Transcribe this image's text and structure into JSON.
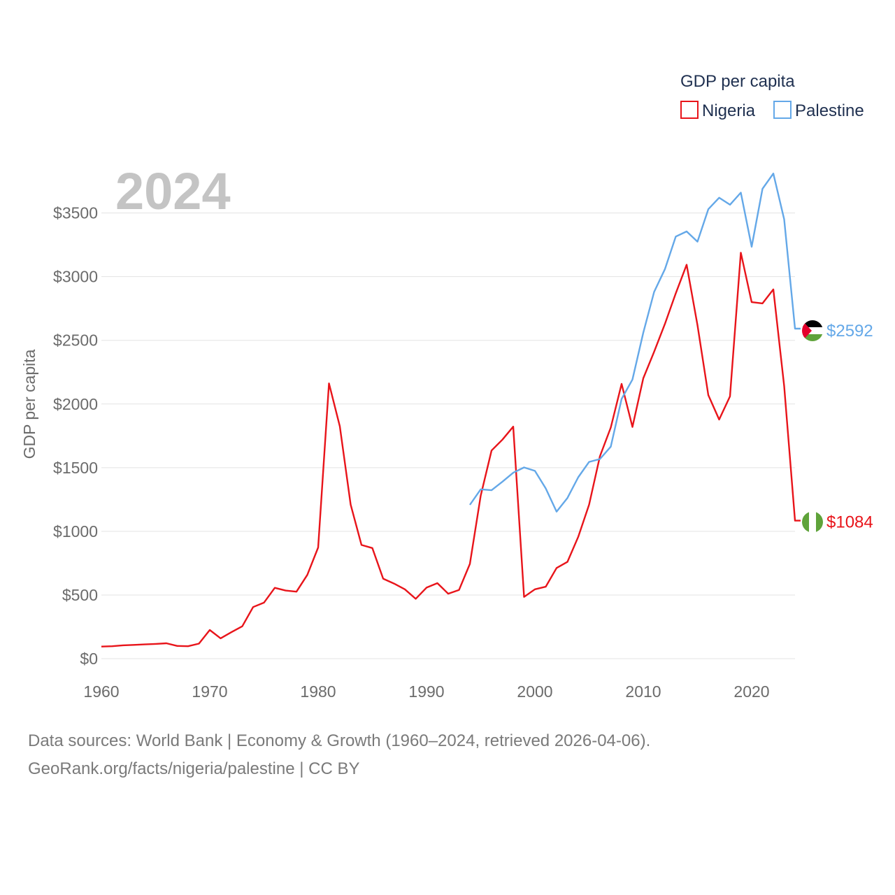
{
  "colors": {
    "nigeria": "#e8141a",
    "palestine": "#64a8e8",
    "grid": "#e3e3e3",
    "flag_black": "#000000",
    "flag_green": "#5fa33a",
    "flag_red": "#e4002b",
    "flag_white": "#ffffff"
  },
  "chart_data": {
    "type": "line",
    "title": "GDP per capita",
    "current_year": "2024",
    "xlabel": "",
    "ylabel": "GDP per capita",
    "xlim": [
      1960,
      2024
    ],
    "ylim": [
      0,
      3800
    ],
    "x_ticks": [
      1960,
      1970,
      1980,
      1990,
      2000,
      2010,
      2020
    ],
    "y_ticks": [
      {
        "value": 0,
        "label": "$0"
      },
      {
        "value": 500,
        "label": "$500"
      },
      {
        "value": 1000,
        "label": "$1000"
      },
      {
        "value": 1500,
        "label": "$1500"
      },
      {
        "value": 2000,
        "label": "$2000"
      },
      {
        "value": 2500,
        "label": "$2500"
      },
      {
        "value": 3000,
        "label": "$3000"
      },
      {
        "value": 3500,
        "label": "$3500"
      }
    ],
    "legend_position": "top-right",
    "series": [
      {
        "name": "Nigeria",
        "color": "#e8141a",
        "flag": "nigeria-flag-icon",
        "end_label": "$1084",
        "start_year": 1960,
        "values": [
          95,
          98,
          105,
          108,
          112,
          116,
          121,
          100,
          98,
          118,
          225,
          160,
          208,
          254,
          405,
          440,
          556,
          535,
          526,
          658,
          873,
          2162,
          1825,
          1210,
          893,
          869,
          628,
          590,
          545,
          470,
          558,
          593,
          510,
          540,
          744,
          1280,
          1635,
          1720,
          1822,
          485,
          545,
          565,
          712,
          760,
          957,
          1210,
          1590,
          1815,
          2158,
          1820,
          2202,
          2410,
          2630,
          2870,
          3094,
          2620,
          2070,
          1878,
          2060,
          3188,
          2800,
          2790,
          2900,
          2140,
          1084
        ]
      },
      {
        "name": "Palestine",
        "color": "#64a8e8",
        "flag": "palestine-flag-icon",
        "end_label": "$2592",
        "start_year": 1994,
        "values": [
          1208,
          1330,
          1323,
          1390,
          1460,
          1502,
          1475,
          1337,
          1155,
          1262,
          1425,
          1545,
          1568,
          1665,
          2040,
          2192,
          2560,
          2880,
          3060,
          3315,
          3355,
          3275,
          3530,
          3620,
          3565,
          3660,
          3235,
          3690,
          3810,
          3450,
          2592
        ]
      }
    ]
  },
  "footer": {
    "line1": "Data sources: World Bank | Economy & Growth (1960–2024, retrieved 2026-04-06).",
    "line2": "GeoRank.org/facts/nigeria/palestine | CC BY"
  }
}
